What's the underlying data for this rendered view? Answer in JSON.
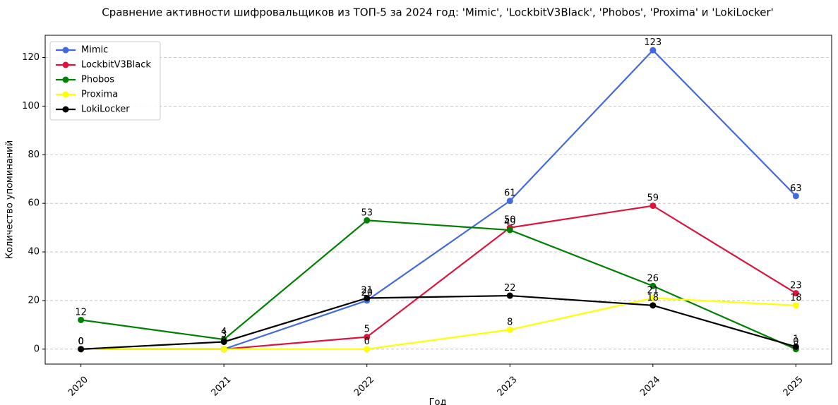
{
  "chart_data": {
    "type": "line",
    "title": "Сравнение активности шифровальщиков из ТОП-5 за 2024 год: 'Mimic', 'LockbitV3Black', 'Phobos', 'Proxima' и 'LokiLocker'",
    "x_label": "Год",
    "y_label": "Количество упоминаний",
    "x": [
      2020,
      2021,
      2022,
      2023,
      2024,
      2025
    ],
    "series": [
      {
        "name": "Mimic",
        "color": "#4169e1",
        "values": [
          0,
          0,
          20,
          61,
          123,
          63
        ]
      },
      {
        "name": "LockbitV3Black",
        "color": "#dc143c",
        "values": [
          0,
          0,
          5,
          50,
          59,
          23
        ]
      },
      {
        "name": "Phobos",
        "color": "#008000",
        "values": [
          12,
          4,
          53,
          49,
          26,
          0
        ]
      },
      {
        "name": "Proxima",
        "color": "#ffff00",
        "values": [
          0,
          0,
          0,
          8,
          21,
          18
        ]
      },
      {
        "name": "LokiLocker",
        "color": "#000000",
        "values": [
          0,
          3,
          21,
          22,
          18,
          1
        ]
      }
    ],
    "xlim": [
      2019.75,
      2025.25
    ],
    "xticks": [
      2020,
      2021,
      2022,
      2023,
      2024,
      2025
    ],
    "ylim": [
      -6.15,
      129.15
    ],
    "yticks": [
      0,
      20,
      40,
      60,
      80,
      100,
      120
    ],
    "grid": true,
    "legend": "upper left"
  }
}
